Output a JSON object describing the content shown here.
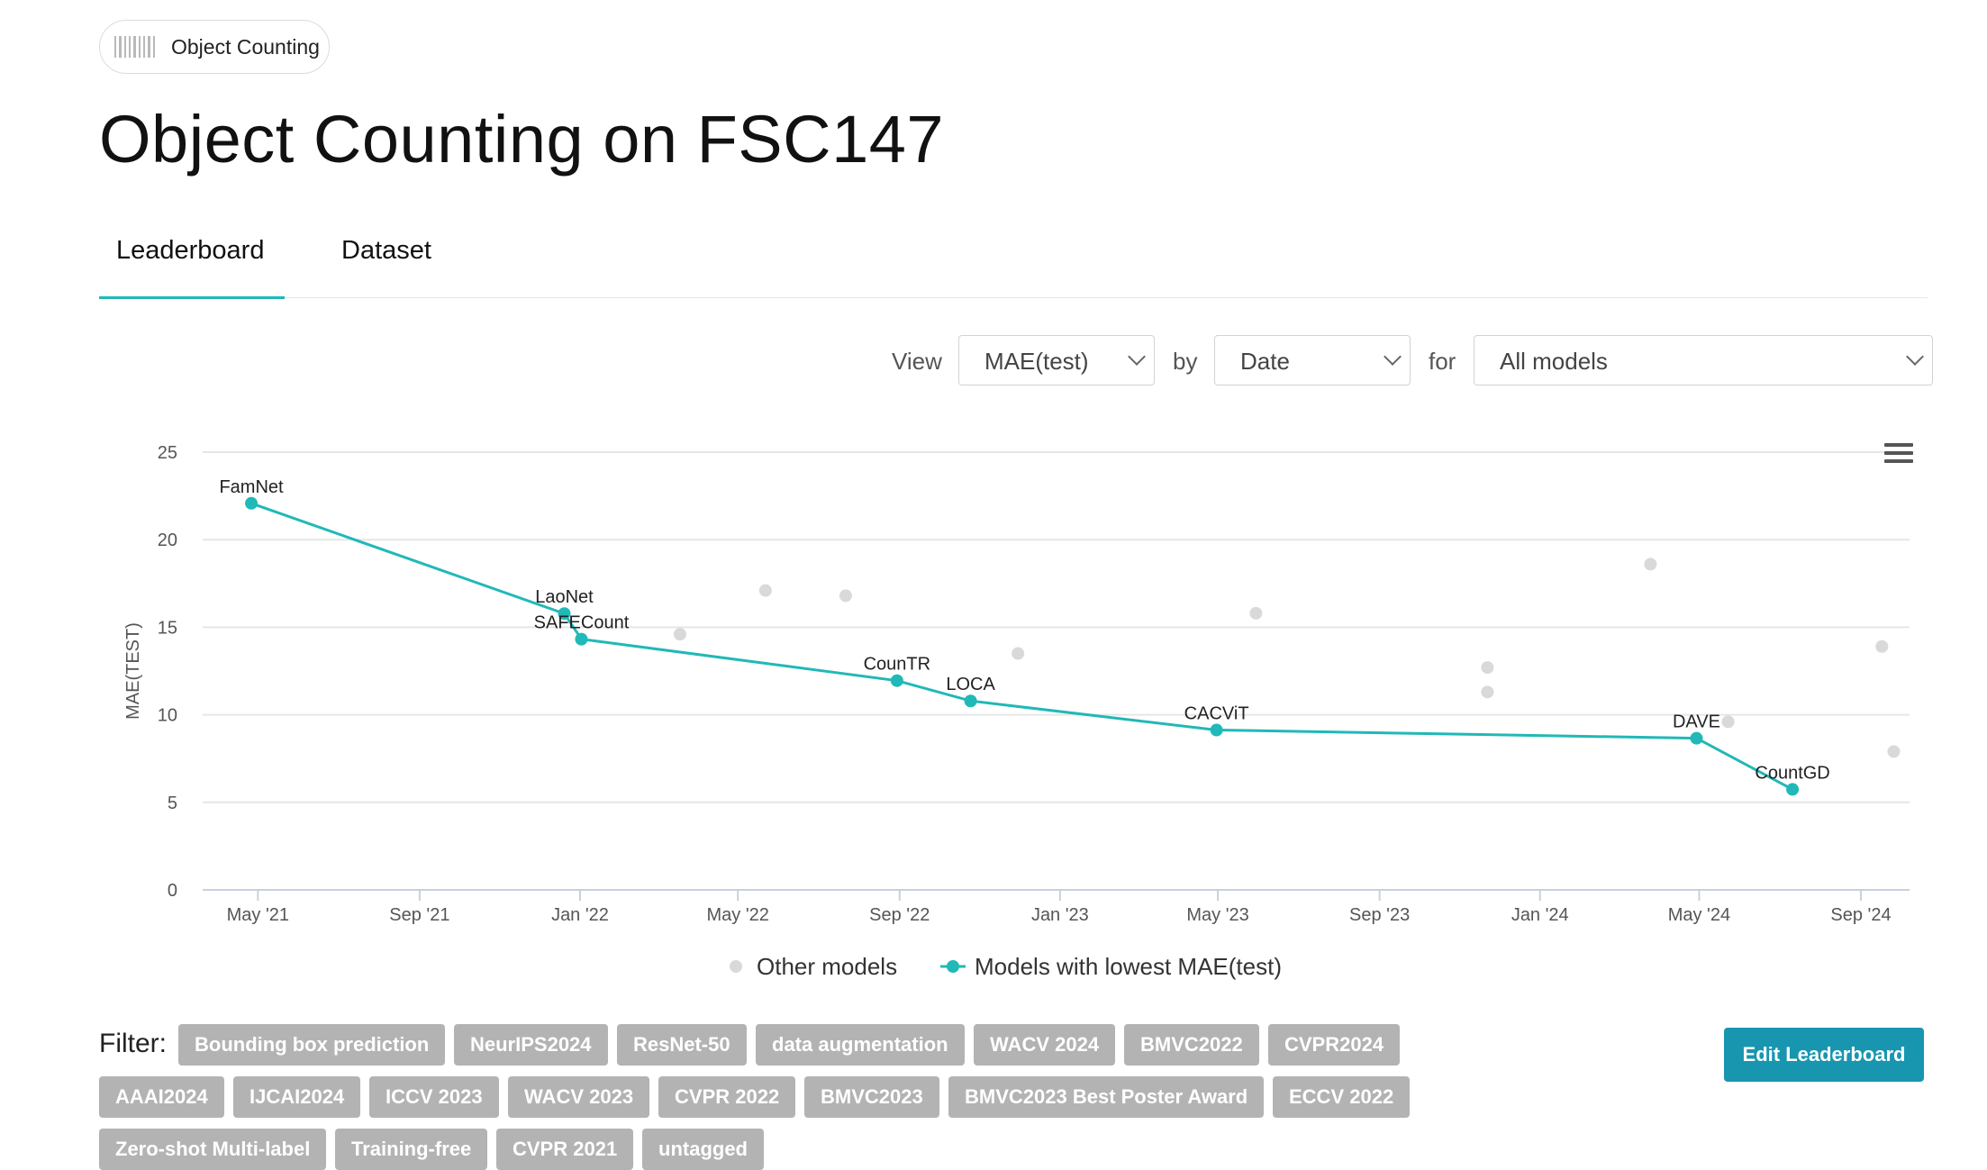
{
  "task_chip": {
    "label": "Object Counting",
    "icon": "barcode-icon"
  },
  "page_title": "Object Counting on FSC147",
  "tabs": [
    {
      "label": "Leaderboard",
      "active": true
    },
    {
      "label": "Dataset",
      "active": false
    }
  ],
  "controls": {
    "view_label": "View",
    "view_value": "MAE(test)",
    "by_label": "by",
    "by_value": "Date",
    "for_label": "for",
    "for_value": "All models"
  },
  "colors": {
    "accent": "#21b8b8",
    "other_models": "#d9d9d9",
    "tag_bg": "#b3b3b3",
    "edit_button": "#1896b0"
  },
  "chart_data": {
    "type": "scatter",
    "ylabel": "MAE(TEST)",
    "ylim": [
      0,
      25
    ],
    "y_ticks": [
      0,
      5,
      10,
      15,
      20,
      25
    ],
    "x_range": [
      "2021-03-20",
      "2024-10-08"
    ],
    "x_ticks": [
      {
        "date": "2021-05-01",
        "label": "May '21"
      },
      {
        "date": "2021-09-01",
        "label": "Sep '21"
      },
      {
        "date": "2022-01-01",
        "label": "Jan '22"
      },
      {
        "date": "2022-05-01",
        "label": "May '22"
      },
      {
        "date": "2022-09-01",
        "label": "Sep '22"
      },
      {
        "date": "2023-01-01",
        "label": "Jan '23"
      },
      {
        "date": "2023-05-01",
        "label": "May '23"
      },
      {
        "date": "2023-09-01",
        "label": "Sep '23"
      },
      {
        "date": "2024-01-01",
        "label": "Jan '24"
      },
      {
        "date": "2024-05-01",
        "label": "May '24"
      },
      {
        "date": "2024-09-01",
        "label": "Sep '24"
      }
    ],
    "grid": true,
    "legend_position": "bottom-center",
    "series": [
      {
        "name": "Models with lowest MAE(test)",
        "color": "#21b8b8",
        "points": [
          {
            "date": "2021-04-26",
            "y": 22.08,
            "label": "FamNet"
          },
          {
            "date": "2021-12-20",
            "y": 15.78,
            "label": "LaoNet"
          },
          {
            "date": "2022-01-02",
            "y": 14.32,
            "label": "SAFECount"
          },
          {
            "date": "2022-08-30",
            "y": 11.95,
            "label": "CounTR"
          },
          {
            "date": "2022-10-25",
            "y": 10.79,
            "label": "LOCA"
          },
          {
            "date": "2023-04-30",
            "y": 9.13,
            "label": "CACViT"
          },
          {
            "date": "2024-04-29",
            "y": 8.66,
            "label": "DAVE"
          },
          {
            "date": "2024-07-11",
            "y": 5.74,
            "label": "CountGD"
          }
        ]
      },
      {
        "name": "Other models",
        "color": "#d9d9d9",
        "points": [
          {
            "date": "2022-03-18",
            "y": 14.6
          },
          {
            "date": "2022-05-22",
            "y": 17.1
          },
          {
            "date": "2022-07-22",
            "y": 16.8
          },
          {
            "date": "2022-11-30",
            "y": 13.5
          },
          {
            "date": "2023-05-30",
            "y": 15.8
          },
          {
            "date": "2023-11-22",
            "y": 12.7
          },
          {
            "date": "2023-11-22",
            "y": 11.3
          },
          {
            "date": "2024-03-25",
            "y": 18.6
          },
          {
            "date": "2024-05-23",
            "y": 9.6
          },
          {
            "date": "2024-09-17",
            "y": 13.9
          },
          {
            "date": "2024-09-26",
            "y": 7.9
          }
        ]
      }
    ],
    "legend": [
      {
        "label": "Other models",
        "marker": "dot",
        "color": "#d9d9d9"
      },
      {
        "label": "Models with lowest MAE(test)",
        "marker": "line-dot",
        "color": "#21b8b8"
      }
    ]
  },
  "filters": {
    "label": "Filter:",
    "tags": [
      "Bounding box prediction",
      "NeurIPS2024",
      "ResNet-50",
      "data augmentation",
      "WACV 2024",
      "BMVC2022",
      "CVPR2024",
      "AAAI2024",
      "IJCAI2024",
      "ICCV 2023",
      "WACV 2023",
      "CVPR 2022",
      "BMVC2023",
      "BMVC2023 Best Poster Award",
      "ECCV 2022",
      "Zero-shot Multi-label",
      "Training-free",
      "CVPR 2021",
      "untagged"
    ]
  },
  "edit_button": "Edit Leaderboard",
  "chart_menu_icon": "hamburger-menu-icon"
}
